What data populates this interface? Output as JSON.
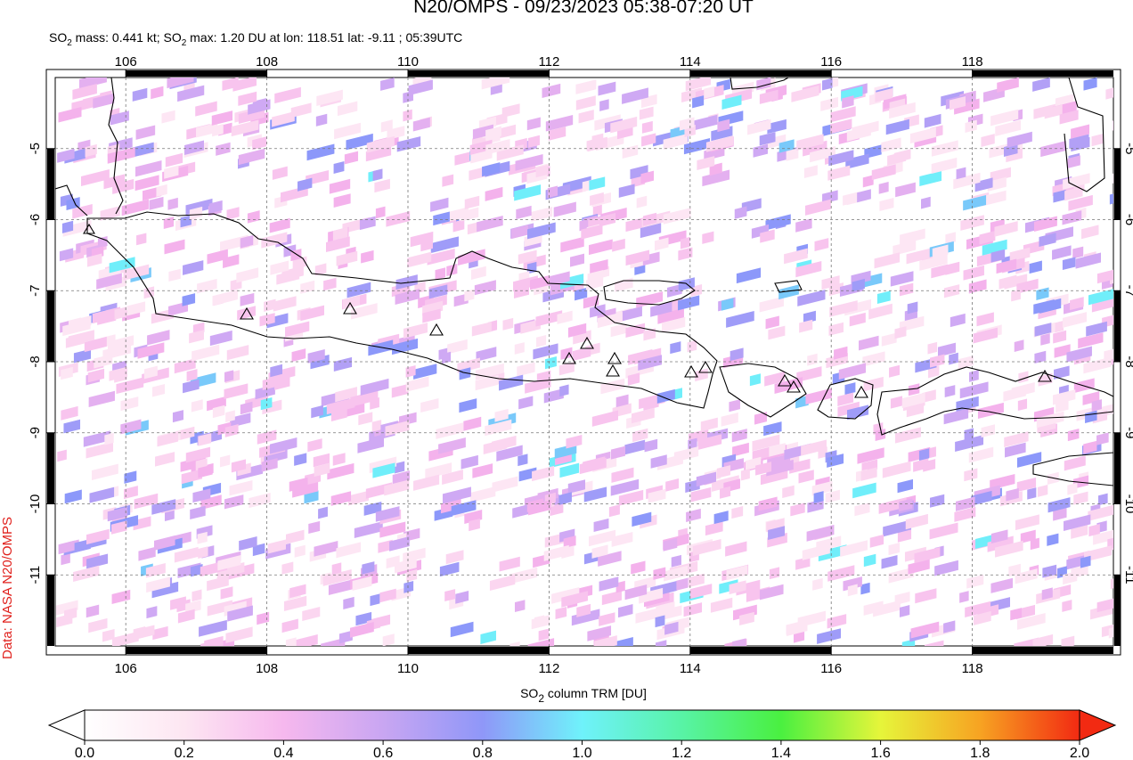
{
  "title": "N20/OMPS - 09/23/2023 05:38-07:20 UT",
  "subtitle_parts": [
    "SO",
    "2",
    " mass: 0.441 kt; SO",
    "2",
    " max: 1.20 DU at lon: 118.51 lat: -9.11 ; 05:39UTC"
  ],
  "credit": "Data: NASA N20/OMPS",
  "map": {
    "xlim": [
      105,
      120
    ],
    "ylim": [
      -12,
      -4
    ],
    "xticks": [
      106,
      108,
      110,
      112,
      114,
      116,
      118
    ],
    "yticks": [
      -5,
      -6,
      -7,
      -8,
      -9,
      -10,
      -11
    ],
    "grid": true
  },
  "colorbar": {
    "label_parts": [
      "SO",
      "2",
      " column TRM [DU]"
    ],
    "lim": [
      0,
      2
    ],
    "ticks": [
      {
        "value": 0,
        "label": "0.0"
      },
      {
        "value": 0.2,
        "label": "0.2"
      },
      {
        "value": 0.4,
        "label": "0.4"
      },
      {
        "value": 0.6,
        "label": "0.6"
      },
      {
        "value": 0.8,
        "label": "0.8"
      },
      {
        "value": 1,
        "label": "1.0"
      },
      {
        "value": 1.2,
        "label": "1.2"
      },
      {
        "value": 1.4,
        "label": "1.4"
      },
      {
        "value": 1.6,
        "label": "1.6"
      },
      {
        "value": 1.8,
        "label": "1.8"
      },
      {
        "value": 2,
        "label": "2.0"
      }
    ]
  }
}
